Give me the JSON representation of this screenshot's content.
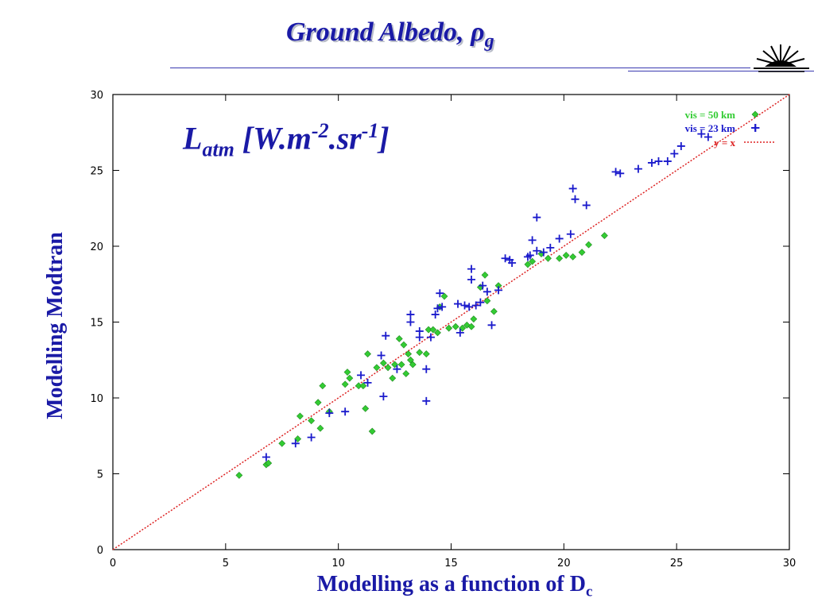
{
  "slide": {
    "title_main": "Ground Albedo, ",
    "title_symbol": "ρ",
    "title_sub": "g"
  },
  "annotation": {
    "L": "L",
    "sub": "atm",
    "part1": " [W.m",
    "exp1": "-2",
    "part2": ".sr",
    "exp2": "-1",
    "part3": "]"
  },
  "axes": {
    "xlabel_main": "Modelling as a function of D",
    "xlabel_sub": "c",
    "ylabel": "Modelling Modtran"
  },
  "chart_data": {
    "type": "scatter",
    "xlim": [
      0,
      30
    ],
    "ylim": [
      0,
      30
    ],
    "xticks": [
      0,
      5,
      10,
      15,
      20,
      25,
      30
    ],
    "yticks": [
      0,
      5,
      10,
      15,
      20,
      25,
      30
    ],
    "legend_position": "top-right",
    "colors": {
      "vis50": "#33cc33",
      "vis23": "#1a1acc",
      "identity": "#dd2222"
    },
    "series": [
      {
        "name": "vis = 50 km",
        "marker": "diamond",
        "points": [
          [
            5.6,
            4.9
          ],
          [
            6.8,
            5.6
          ],
          [
            6.9,
            5.7
          ],
          [
            7.5,
            7.0
          ],
          [
            8.2,
            7.3
          ],
          [
            8.3,
            8.8
          ],
          [
            8.8,
            8.5
          ],
          [
            9.1,
            9.7
          ],
          [
            9.2,
            8.0
          ],
          [
            9.3,
            10.8
          ],
          [
            9.6,
            9.1
          ],
          [
            10.3,
            10.9
          ],
          [
            10.4,
            11.7
          ],
          [
            10.5,
            11.3
          ],
          [
            10.9,
            10.8
          ],
          [
            11.1,
            10.8
          ],
          [
            11.2,
            9.3
          ],
          [
            11.3,
            12.9
          ],
          [
            11.5,
            7.8
          ],
          [
            11.7,
            12.0
          ],
          [
            12.0,
            12.3
          ],
          [
            12.2,
            12.0
          ],
          [
            12.4,
            11.3
          ],
          [
            12.5,
            12.2
          ],
          [
            12.7,
            13.9
          ],
          [
            12.8,
            12.2
          ],
          [
            12.9,
            13.5
          ],
          [
            13.0,
            11.6
          ],
          [
            13.1,
            12.9
          ],
          [
            13.2,
            12.5
          ],
          [
            13.3,
            12.2
          ],
          [
            13.6,
            13.0
          ],
          [
            13.9,
            12.9
          ],
          [
            14.0,
            14.5
          ],
          [
            14.2,
            14.5
          ],
          [
            14.4,
            14.3
          ],
          [
            14.5,
            16.0
          ],
          [
            14.7,
            16.7
          ],
          [
            14.9,
            14.6
          ],
          [
            15.2,
            14.7
          ],
          [
            15.5,
            14.6
          ],
          [
            15.7,
            14.8
          ],
          [
            15.9,
            14.7
          ],
          [
            16.0,
            15.2
          ],
          [
            16.3,
            17.3
          ],
          [
            16.5,
            18.1
          ],
          [
            16.6,
            16.4
          ],
          [
            16.9,
            15.7
          ],
          [
            17.1,
            17.4
          ],
          [
            18.4,
            18.8
          ],
          [
            18.6,
            19.0
          ],
          [
            19.0,
            19.5
          ],
          [
            19.3,
            19.2
          ],
          [
            19.8,
            19.2
          ],
          [
            20.1,
            19.4
          ],
          [
            20.4,
            19.3
          ],
          [
            20.8,
            19.6
          ],
          [
            21.1,
            20.1
          ],
          [
            21.8,
            20.7
          ]
        ]
      },
      {
        "name": "vis = 23 km",
        "marker": "plus",
        "points": [
          [
            6.8,
            6.1
          ],
          [
            8.1,
            7.0
          ],
          [
            8.8,
            7.4
          ],
          [
            9.6,
            9.0
          ],
          [
            10.3,
            9.1
          ],
          [
            11.0,
            11.5
          ],
          [
            11.3,
            11.0
          ],
          [
            11.9,
            12.8
          ],
          [
            12.1,
            14.1
          ],
          [
            12.0,
            10.1
          ],
          [
            12.6,
            11.9
          ],
          [
            13.2,
            15.5
          ],
          [
            13.2,
            15.0
          ],
          [
            13.6,
            14.0
          ],
          [
            13.6,
            14.4
          ],
          [
            13.9,
            9.8
          ],
          [
            13.9,
            11.9
          ],
          [
            14.1,
            14.0
          ],
          [
            14.3,
            15.5
          ],
          [
            14.4,
            15.9
          ],
          [
            14.5,
            16.9
          ],
          [
            14.6,
            16.0
          ],
          [
            15.3,
            16.2
          ],
          [
            15.4,
            14.3
          ],
          [
            15.6,
            16.1
          ],
          [
            15.8,
            16.0
          ],
          [
            15.9,
            17.8
          ],
          [
            15.9,
            18.5
          ],
          [
            16.1,
            16.1
          ],
          [
            16.3,
            16.3
          ],
          [
            16.4,
            17.4
          ],
          [
            16.6,
            17.0
          ],
          [
            16.8,
            14.8
          ],
          [
            17.1,
            17.1
          ],
          [
            17.4,
            19.2
          ],
          [
            17.6,
            19.1
          ],
          [
            17.7,
            18.9
          ],
          [
            18.4,
            19.3
          ],
          [
            18.5,
            19.4
          ],
          [
            18.6,
            20.4
          ],
          [
            18.8,
            21.9
          ],
          [
            18.8,
            19.7
          ],
          [
            19.1,
            19.6
          ],
          [
            19.4,
            19.9
          ],
          [
            19.8,
            20.5
          ],
          [
            20.3,
            20.8
          ],
          [
            20.4,
            23.8
          ],
          [
            20.5,
            23.1
          ],
          [
            21.0,
            22.7
          ],
          [
            22.3,
            24.9
          ],
          [
            22.5,
            24.8
          ],
          [
            23.3,
            25.1
          ],
          [
            23.9,
            25.5
          ],
          [
            24.2,
            25.6
          ],
          [
            24.6,
            25.6
          ],
          [
            24.9,
            26.1
          ],
          [
            25.2,
            26.6
          ],
          [
            26.1,
            27.4
          ],
          [
            26.4,
            27.2
          ],
          [
            28.5,
            27.8
          ]
        ]
      },
      {
        "name": "y = x",
        "marker": "line",
        "points": [
          [
            0,
            0
          ],
          [
            30,
            30
          ]
        ]
      }
    ]
  }
}
